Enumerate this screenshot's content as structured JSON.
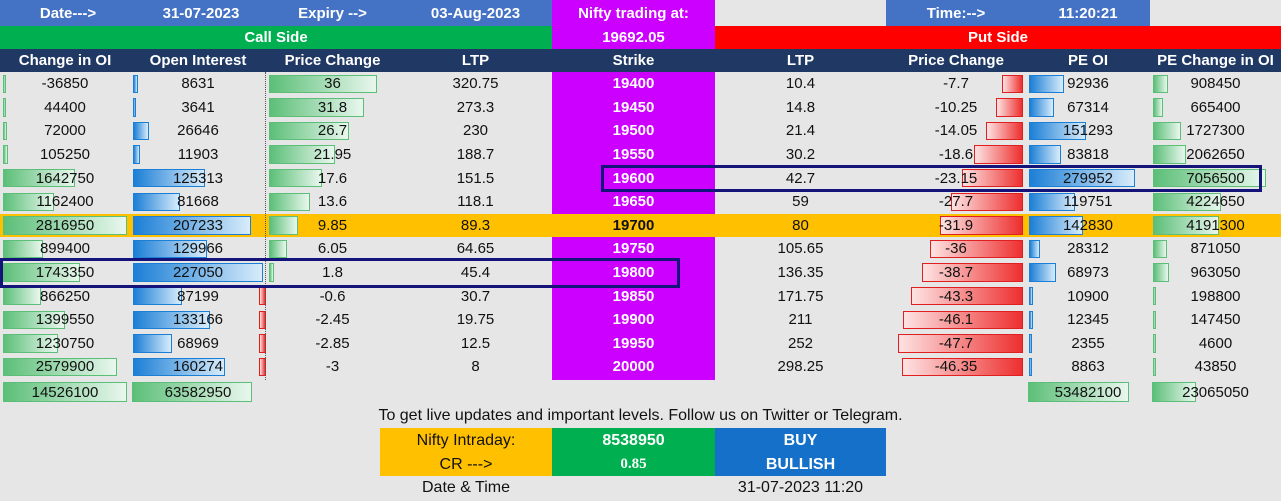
{
  "top": {
    "date_label": "Date--->",
    "date_value": "31-07-2023",
    "expiry_label": "Expiry -->",
    "expiry_value": "03-Aug-2023",
    "nifty_label": "Nifty trading at:",
    "nifty_value": "19692.05",
    "time_label": "Time:-->",
    "time_value": "11:20:21",
    "call_side": "Call Side",
    "put_side": "Put Side"
  },
  "columns": [
    "Change in OI",
    "Open Interest",
    "Price Change",
    "LTP",
    "Strike",
    "LTP",
    "Price Change",
    "PE OI",
    "PE Change in OI"
  ],
  "rows": [
    {
      "ce_chg_oi": "-36850",
      "ce_oi": "8631",
      "ce_price_chg": "36",
      "ce_ltp": "320.75",
      "strike": "19400",
      "pe_ltp": "10.4",
      "pe_price_chg": "-7.7",
      "pe_oi": "92936",
      "pe_chg_oi": "908450",
      "ce_chg_oi_frac": 0,
      "ce_oi_frac": 0.04,
      "ce_pc_frac": 1.0,
      "pe_pc_frac": 0.17,
      "pe_oi_frac": 0.33,
      "pe_chg_frac": 0.13
    },
    {
      "ce_chg_oi": "44400",
      "ce_oi": "3641",
      "ce_price_chg": "31.8",
      "ce_ltp": "273.3",
      "strike": "19450",
      "pe_ltp": "14.8",
      "pe_price_chg": "-10.25",
      "pe_oi": "67314",
      "pe_chg_oi": "665400",
      "ce_chg_oi_frac": 0.02,
      "ce_oi_frac": 0.02,
      "ce_pc_frac": 0.88,
      "pe_pc_frac": 0.22,
      "pe_oi_frac": 0.24,
      "pe_chg_frac": 0.09
    },
    {
      "ce_chg_oi": "72000",
      "ce_oi": "26646",
      "ce_price_chg": "26.7",
      "ce_ltp": "230",
      "strike": "19500",
      "pe_ltp": "21.4",
      "pe_price_chg": "-14.05",
      "pe_oi": "151293",
      "pe_chg_oi": "1727300",
      "ce_chg_oi_frac": 0.03,
      "ce_oi_frac": 0.12,
      "ce_pc_frac": 0.74,
      "pe_pc_frac": 0.3,
      "pe_oi_frac": 0.54,
      "pe_chg_frac": 0.25
    },
    {
      "ce_chg_oi": "105250",
      "ce_oi": "11903",
      "ce_price_chg": "21.95",
      "ce_ltp": "188.7",
      "strike": "19550",
      "pe_ltp": "30.2",
      "pe_price_chg": "-18.6",
      "pe_oi": "83818",
      "pe_chg_oi": "2062650",
      "ce_chg_oi_frac": 0.04,
      "ce_oi_frac": 0.05,
      "ce_pc_frac": 0.61,
      "pe_pc_frac": 0.39,
      "pe_oi_frac": 0.3,
      "pe_chg_frac": 0.29
    },
    {
      "ce_chg_oi": "1642750",
      "ce_oi": "125313",
      "ce_price_chg": "17.6",
      "ce_ltp": "151.5",
      "strike": "19600",
      "pe_ltp": "42.7",
      "pe_price_chg": "-23.15",
      "pe_oi": "279952",
      "pe_chg_oi": "7056500",
      "ce_chg_oi_frac": 0.58,
      "ce_oi_frac": 0.55,
      "ce_pc_frac": 0.49,
      "pe_pc_frac": 0.49,
      "pe_oi_frac": 1.0,
      "pe_chg_frac": 1.0
    },
    {
      "ce_chg_oi": "1162400",
      "ce_oi": "81668",
      "ce_price_chg": "13.6",
      "ce_ltp": "118.1",
      "strike": "19650",
      "pe_ltp": "59",
      "pe_price_chg": "-27.7",
      "pe_oi": "119751",
      "pe_chg_oi": "4224650",
      "ce_chg_oi_frac": 0.41,
      "ce_oi_frac": 0.36,
      "ce_pc_frac": 0.38,
      "pe_pc_frac": 0.58,
      "pe_oi_frac": 0.43,
      "pe_chg_frac": 0.6
    },
    {
      "ce_chg_oi": "2816950",
      "ce_oi": "207233",
      "ce_price_chg": "9.85",
      "ce_ltp": "89.3",
      "strike": "19700",
      "pe_ltp": "80",
      "pe_price_chg": "-31.9",
      "pe_oi": "142830",
      "pe_chg_oi": "4191300",
      "ce_chg_oi_frac": 1.0,
      "ce_oi_frac": 0.91,
      "ce_pc_frac": 0.27,
      "pe_pc_frac": 0.67,
      "pe_oi_frac": 0.51,
      "pe_chg_frac": 0.59,
      "atm": true
    },
    {
      "ce_chg_oi": "899400",
      "ce_oi": "129966",
      "ce_price_chg": "6.05",
      "ce_ltp": "64.65",
      "strike": "19750",
      "pe_ltp": "105.65",
      "pe_price_chg": "-36",
      "pe_oi": "28312",
      "pe_chg_oi": "871050",
      "ce_chg_oi_frac": 0.32,
      "ce_oi_frac": 0.57,
      "ce_pc_frac": 0.17,
      "pe_pc_frac": 0.75,
      "pe_oi_frac": 0.1,
      "pe_chg_frac": 0.12
    },
    {
      "ce_chg_oi": "1743350",
      "ce_oi": "227050",
      "ce_price_chg": "1.8",
      "ce_ltp": "45.4",
      "strike": "19800",
      "pe_ltp": "136.35",
      "pe_price_chg": "-38.7",
      "pe_oi": "68973",
      "pe_chg_oi": "963050",
      "ce_chg_oi_frac": 0.62,
      "ce_oi_frac": 1.0,
      "ce_pc_frac": 0.05,
      "pe_pc_frac": 0.81,
      "pe_oi_frac": 0.25,
      "pe_chg_frac": 0.14
    },
    {
      "ce_chg_oi": "866250",
      "ce_oi": "87199",
      "ce_price_chg": "-0.6",
      "ce_ltp": "30.7",
      "strike": "19850",
      "pe_ltp": "171.75",
      "pe_price_chg": "-43.3",
      "pe_oi": "10900",
      "pe_chg_oi": "198800",
      "ce_chg_oi_frac": 0.31,
      "ce_oi_frac": 0.38,
      "ce_pc_frac": -0.02,
      "pe_pc_frac": 0.9,
      "pe_oi_frac": 0.04,
      "pe_chg_frac": 0.03
    },
    {
      "ce_chg_oi": "1399550",
      "ce_oi": "133166",
      "ce_price_chg": "-2.45",
      "ce_ltp": "19.75",
      "strike": "19900",
      "pe_ltp": "211",
      "pe_price_chg": "-46.1",
      "pe_oi": "12345",
      "pe_chg_oi": "147450",
      "ce_chg_oi_frac": 0.5,
      "ce_oi_frac": 0.59,
      "ce_pc_frac": -0.07,
      "pe_pc_frac": 0.96,
      "pe_oi_frac": 0.04,
      "pe_chg_frac": 0.02
    },
    {
      "ce_chg_oi": "1230750",
      "ce_oi": "68969",
      "ce_price_chg": "-2.85",
      "ce_ltp": "12.5",
      "strike": "19950",
      "pe_ltp": "252",
      "pe_price_chg": "-47.7",
      "pe_oi": "2355",
      "pe_chg_oi": "4600",
      "ce_chg_oi_frac": 0.44,
      "ce_oi_frac": 0.3,
      "ce_pc_frac": -0.08,
      "pe_pc_frac": 1.0,
      "pe_oi_frac": 0.01,
      "pe_chg_frac": 0.0
    },
    {
      "ce_chg_oi": "2579900",
      "ce_oi": "160274",
      "ce_price_chg": "-3",
      "ce_ltp": "8",
      "strike": "20000",
      "pe_ltp": "298.25",
      "pe_price_chg": "-46.35",
      "pe_oi": "8863",
      "pe_chg_oi": "43850",
      "ce_chg_oi_frac": 0.92,
      "ce_oi_frac": 0.71,
      "ce_pc_frac": -0.08,
      "pe_pc_frac": 0.97,
      "pe_oi_frac": 0.03,
      "pe_chg_frac": 0.01
    }
  ],
  "totals": {
    "ce_chg_oi": "14526100",
    "ce_oi": "63582950",
    "pe_oi": "53482100",
    "pe_chg_oi": "23065050"
  },
  "footer": {
    "note": "To get live updates and important levels. Follow us on Twitter or Telegram.",
    "intraday_label": "Nifty Intraday:",
    "intraday_value": "8538950",
    "signal": "BUY",
    "cr_label": "CR --->",
    "cr_value": "0.85",
    "bias": "BULLISH",
    "datetime_label": "Date & Time",
    "datetime_value": "31-07-2023 11:20"
  },
  "colors": {
    "navy": "#1f3864",
    "blue": "#4472c4",
    "green": "#00b050",
    "purple": "#cc00ff",
    "red": "#ff0000",
    "gold": "#ffc000",
    "accent_blue": "#1470c8"
  }
}
